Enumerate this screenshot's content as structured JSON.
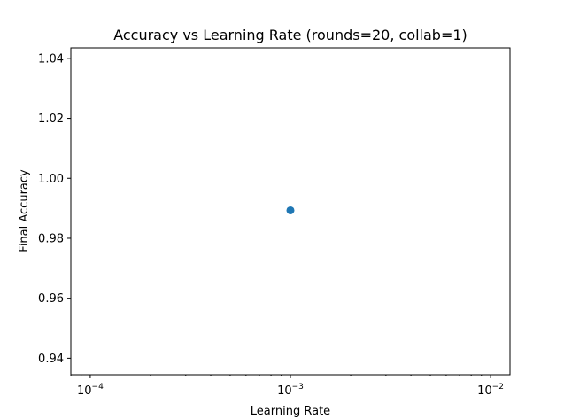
{
  "chart_data": {
    "type": "scatter",
    "title": "Accuracy vs Learning Rate (rounds=20, collab=1)",
    "xlabel": "Learning Rate",
    "ylabel": "Final Accuracy",
    "x_scale": "log",
    "xlim": [
      8e-05,
      0.0125
    ],
    "ylim": [
      0.9345,
      1.0435
    ],
    "x_ticks": [
      {
        "value": 0.0001,
        "base": "10",
        "exp": "−4"
      },
      {
        "value": 0.001,
        "base": "10",
        "exp": "−3"
      },
      {
        "value": 0.01,
        "base": "10",
        "exp": "−2"
      }
    ],
    "y_ticks": [
      0.94,
      0.96,
      0.98,
      1.0,
      1.02,
      1.04
    ],
    "y_tick_labels": [
      "0.94",
      "0.96",
      "0.98",
      "1.00",
      "1.02",
      "1.04"
    ],
    "grid": false,
    "series": [
      {
        "x": [
          0.001
        ],
        "y": [
          0.9893
        ],
        "color": "#1f77b4"
      }
    ]
  }
}
